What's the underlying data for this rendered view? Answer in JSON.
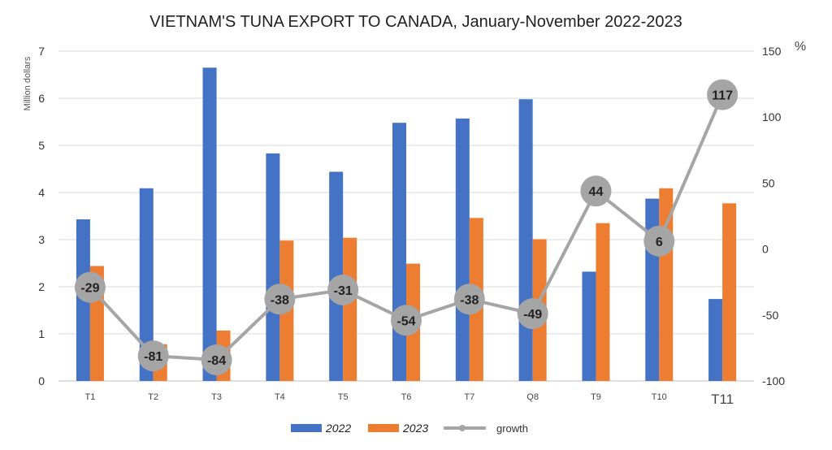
{
  "chart_data": {
    "type": "bar",
    "title": "VIETNAM'S TUNA EXPORT TO CANADA, January-November 2022-2023",
    "ylabel": "Million dollars",
    "y2label": "%",
    "categories": [
      "T1",
      "T2",
      "T3",
      "T4",
      "T5",
      "T6",
      "T7",
      "Q8",
      "T9",
      "T10",
      "T11"
    ],
    "ylim": [
      0,
      7
    ],
    "y_ticks": [
      "0",
      "1",
      "2",
      "3",
      "4",
      "5",
      "6",
      "7"
    ],
    "y2lim": [
      -100,
      150
    ],
    "y2_ticks": [
      "-100",
      "-50",
      "0",
      "50",
      "100",
      "150"
    ],
    "grid": true,
    "legend_position": "bottom",
    "series": [
      {
        "name": "2022",
        "kind": "bar",
        "color": "#4472C4",
        "values": [
          3.43,
          4.09,
          6.65,
          4.83,
          4.44,
          5.48,
          5.57,
          5.98,
          2.32,
          3.87,
          1.74
        ]
      },
      {
        "name": "2023",
        "kind": "bar",
        "color": "#ED7D31",
        "values": [
          2.44,
          0.78,
          1.07,
          2.98,
          3.04,
          2.49,
          3.46,
          3.01,
          3.35,
          4.09,
          3.77
        ]
      },
      {
        "name": "growth",
        "kind": "line",
        "axis": "right",
        "color": "#A5A5A5",
        "values": [
          -29,
          -81,
          -84,
          -38,
          -31,
          -54,
          -38,
          -49,
          44,
          6,
          117
        ],
        "labels": [
          "-29",
          "-81",
          "-84",
          "-38",
          "-31",
          "-54",
          "-38",
          "-49",
          "44",
          "6",
          "117"
        ]
      }
    ]
  }
}
